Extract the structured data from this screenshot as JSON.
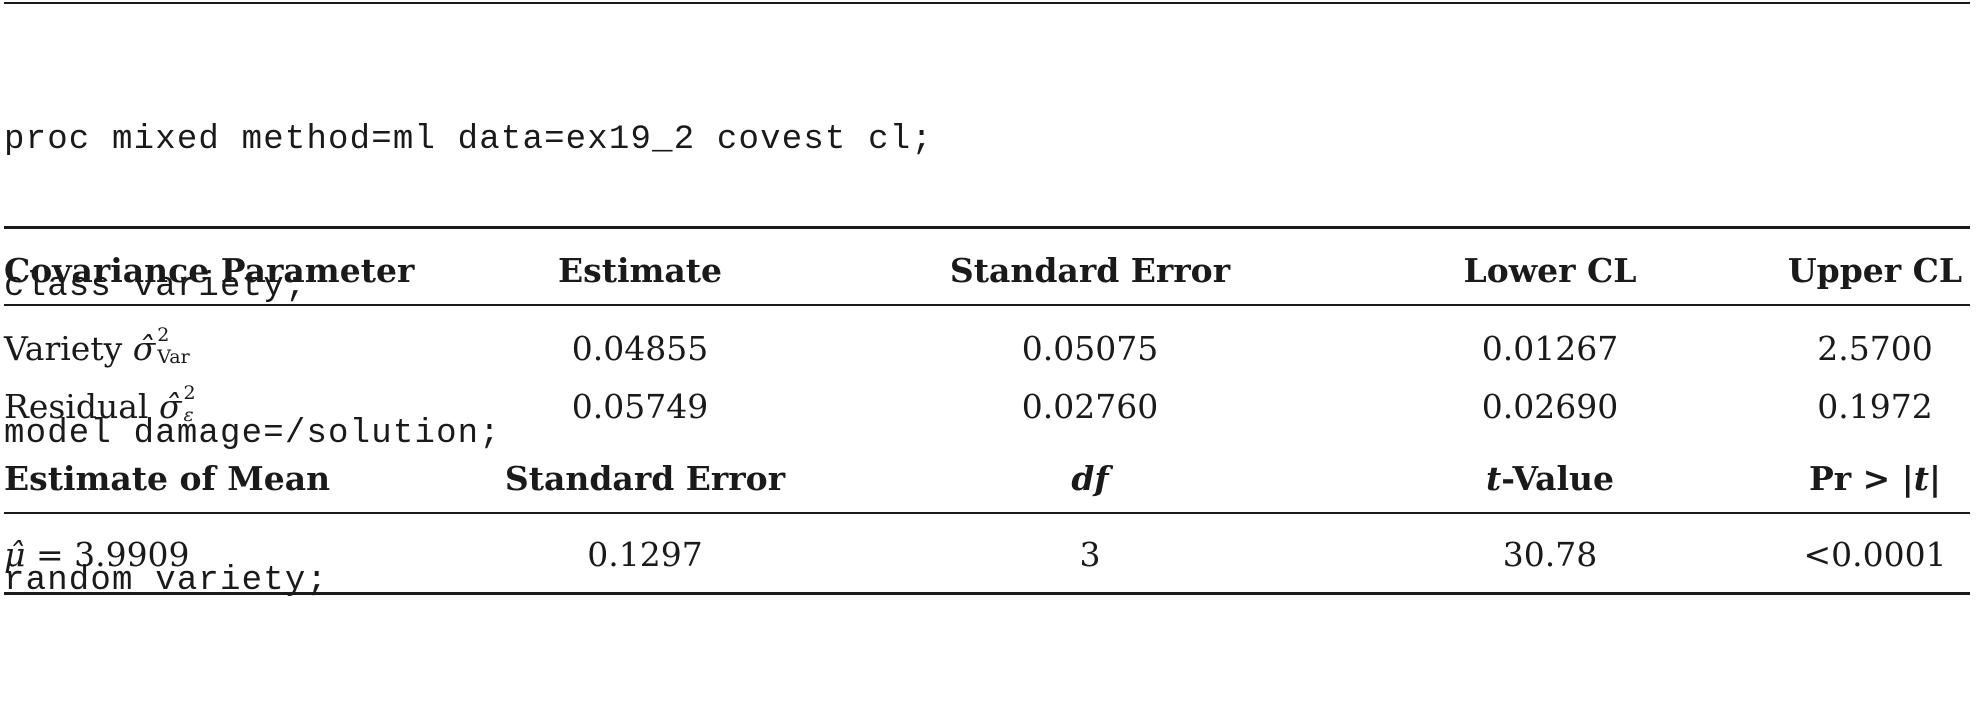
{
  "code": {
    "lines": [
      "proc mixed method=ml data=ex19_2 covest cl;",
      "class variety;",
      "model damage=/solution;",
      "random variety;"
    ]
  },
  "cov_table": {
    "headers": [
      "Covariance Parameter",
      "Estimate",
      "Standard Error",
      "Lower CL",
      "Upper CL"
    ],
    "rows": [
      {
        "label": "Variety",
        "symbol": "σ̂",
        "superscript": "2",
        "subscript": "Var",
        "values": [
          "0.04855",
          "0.05075",
          "0.01267",
          "2.5700"
        ]
      },
      {
        "label": "Residual",
        "symbol": "σ̂",
        "superscript": "2",
        "subscript": "ε",
        "values": [
          "0.05749",
          "0.02760",
          "0.02690",
          "0.1972"
        ]
      }
    ]
  },
  "mean_table": {
    "headers": {
      "estimate": "Estimate of Mean",
      "se": "Standard Error",
      "df": "df",
      "t_prefix": "t",
      "t_suffix": "-Value",
      "p_prefix": "Pr > |",
      "p_var": "t",
      "p_suffix": "|"
    },
    "row": {
      "symbol": "μ̂",
      "equals": " = 3.9909",
      "se": "0.1297",
      "df": "3",
      "t": "30.78",
      "p": "<0.0001"
    }
  }
}
